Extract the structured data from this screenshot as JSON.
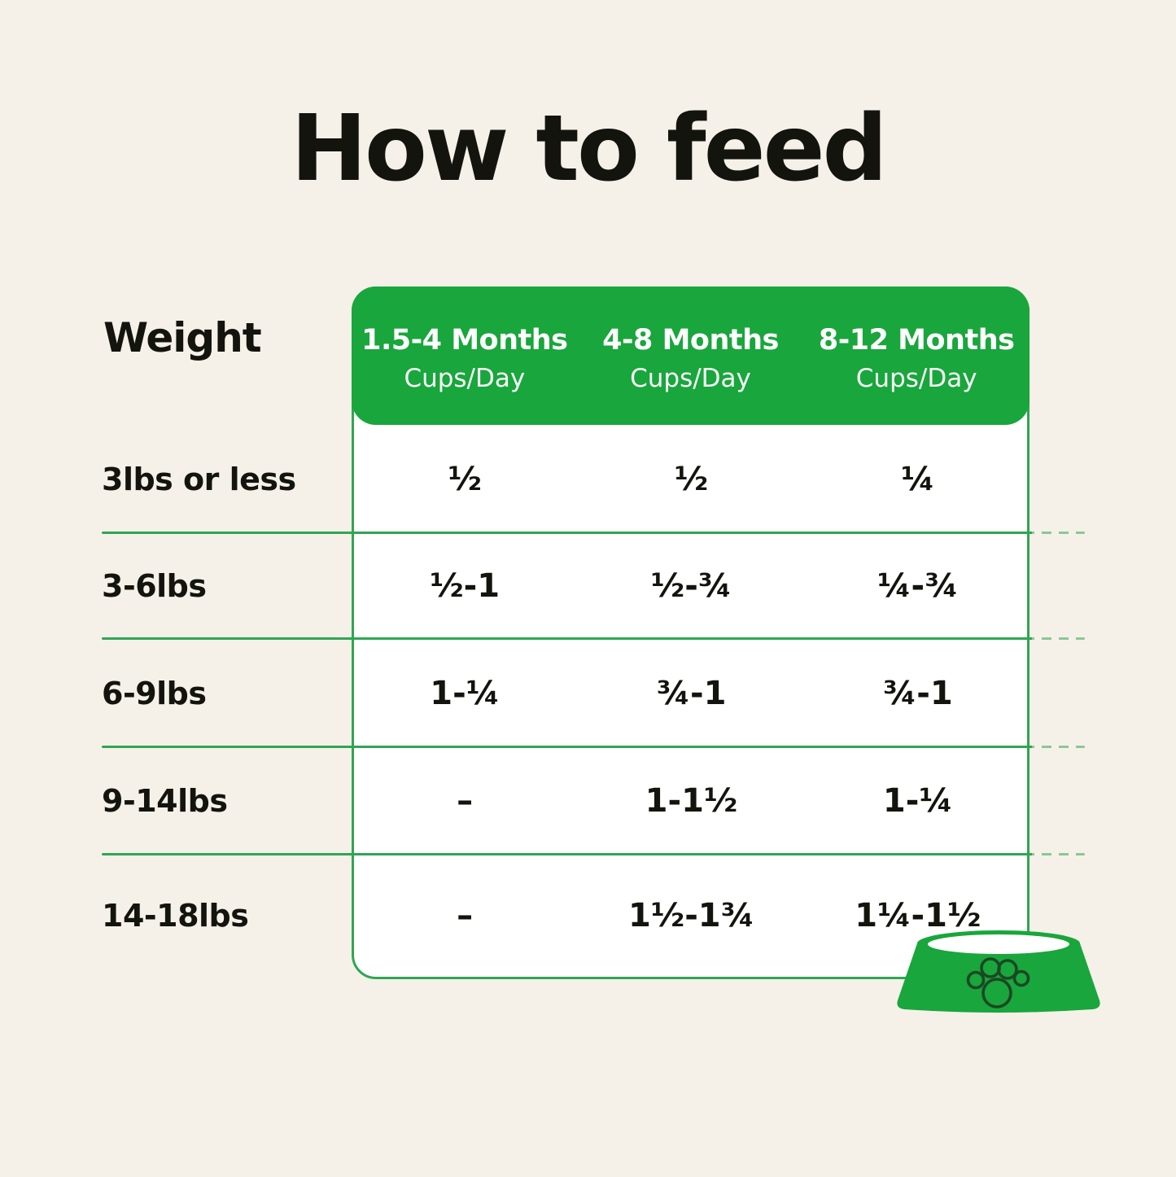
{
  "page": {
    "title": "How to feed",
    "background": "#F5F1E8"
  },
  "colors": {
    "header_green": "#19A63C",
    "line_green": "#2FA653",
    "ink": "#14140E",
    "bowl_green": "#19A63C",
    "paw_dark": "#1B4723",
    "white": "#FFFFFF"
  },
  "table": {
    "weight_label": "Weight",
    "columns": [
      {
        "label": "1.5-4 Months",
        "sublabel": "Cups/Day"
      },
      {
        "label": "4-8 Months",
        "sublabel": "Cups/Day"
      },
      {
        "label": "8-12 Months",
        "sublabel": "Cups/Day"
      }
    ],
    "rows": [
      {
        "weight": "3lbs or less",
        "values": [
          "½",
          "½",
          "¼"
        ]
      },
      {
        "weight": "3-6lbs",
        "values": [
          "½-1",
          "½-¾",
          "¼-¾"
        ]
      },
      {
        "weight": "6-9lbs",
        "values": [
          "1-¼",
          "¾-1",
          "¾-1"
        ]
      },
      {
        "weight": "9-14lbs",
        "values": [
          "–",
          "1-1½",
          "1-¼"
        ]
      },
      {
        "weight": "14-18lbs",
        "values": [
          "–",
          "1½-1¾",
          "1¼-1½"
        ]
      }
    ]
  },
  "icons": {
    "bowl": "dog-bowl-icon",
    "paw": "paw-print-icon"
  },
  "chart_data": {
    "type": "table",
    "title": "How to feed",
    "columns": [
      "Weight",
      "1.5-4 Months Cups/Day",
      "4-8 Months Cups/Day",
      "8-12 Months Cups/Day"
    ],
    "rows": [
      [
        "3lbs or less",
        "½",
        "½",
        "¼"
      ],
      [
        "3-6lbs",
        "½-1",
        "½-¾",
        "¼-¾"
      ],
      [
        "6-9lbs",
        "1-¼",
        "¾-1",
        "¾-1"
      ],
      [
        "9-14lbs",
        "–",
        "1-1½",
        "1-¼"
      ],
      [
        "14-18lbs",
        "–",
        "1½-1¾",
        "1¼-1½"
      ]
    ]
  }
}
